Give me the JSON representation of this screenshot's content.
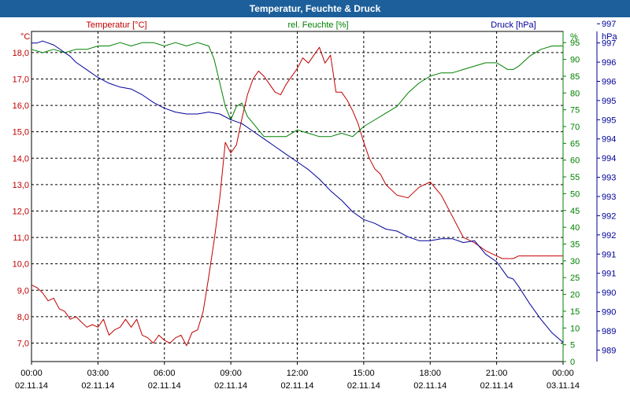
{
  "chart_data": {
    "type": "line",
    "title": "Temperatur, Feuchte & Druck",
    "x_ticks": [
      {
        "time": "00:00",
        "date": "02.11.14"
      },
      {
        "time": "03:00",
        "date": "02.11.14"
      },
      {
        "time": "06:00",
        "date": "02.11.14"
      },
      {
        "time": "09:00",
        "date": "02.11.14"
      },
      {
        "time": "12:00",
        "date": "02.11.14"
      },
      {
        "time": "15:00",
        "date": "02.11.14"
      },
      {
        "time": "18:00",
        "date": "02.11.14"
      },
      {
        "time": "21:00",
        "date": "02.11.14"
      },
      {
        "time": "00:00",
        "date": "03.11.14"
      }
    ],
    "x_range_hours": [
      0,
      24
    ],
    "axes": {
      "temperature": {
        "label": "Temperatur [°C]",
        "unit": "°C",
        "color": "#c00000",
        "ylim": [
          6.3,
          18.8
        ],
        "ticks": [
          "7,0",
          "8,0",
          "9,0",
          "10,0",
          "11,0",
          "12,0",
          "13,0",
          "14,0",
          "15,0",
          "16,0",
          "17,0",
          "18,0"
        ]
      },
      "humidity": {
        "label": "rel. Feuchte [%]",
        "unit": "%",
        "color": "#008000",
        "ylim": [
          0,
          98.33
        ],
        "ticks": [
          "0",
          "5",
          "10",
          "15",
          "20",
          "25",
          "30",
          "35",
          "40",
          "45",
          "50",
          "55",
          "60",
          "65",
          "70",
          "75",
          "80",
          "85",
          "90",
          "95"
        ]
      },
      "pressure": {
        "label": "Druck [hPa]",
        "unit": "hPa",
        "color": "#000099",
        "ylim": [
          988.7,
          997.3
        ],
        "ticks": [
          "989",
          "989",
          "990",
          "990",
          "991",
          "991",
          "992",
          "992",
          "993",
          "993",
          "994",
          "994",
          "995",
          "995",
          "996",
          "996",
          "997",
          "997"
        ]
      }
    },
    "series": [
      {
        "name": "Temperatur",
        "axis": "temperature",
        "color": "#c00000",
        "x": [
          0,
          0.25,
          0.5,
          0.75,
          1,
          1.25,
          1.5,
          1.75,
          2,
          2.25,
          2.5,
          2.75,
          3,
          3.25,
          3.5,
          3.75,
          4,
          4.25,
          4.5,
          4.75,
          5,
          5.25,
          5.5,
          5.75,
          6,
          6.25,
          6.5,
          6.75,
          7,
          7.25,
          7.5,
          7.75,
          8,
          8.25,
          8.5,
          8.75,
          9,
          9.25,
          9.5,
          9.75,
          10,
          10.25,
          10.5,
          10.75,
          11,
          11.25,
          11.5,
          11.75,
          12,
          12.25,
          12.5,
          12.75,
          13,
          13.25,
          13.5,
          13.75,
          14,
          14.25,
          14.5,
          14.75,
          15,
          15.25,
          15.5,
          15.75,
          16,
          16.5,
          17,
          17.5,
          18,
          18.5,
          19,
          19.5,
          20,
          20.5,
          21,
          21.25,
          21.5,
          21.75,
          22,
          22.5,
          23,
          23.5,
          24
        ],
        "values": [
          9.2,
          9.1,
          8.9,
          8.6,
          8.7,
          8.3,
          8.2,
          7.9,
          8.0,
          7.8,
          7.6,
          7.7,
          7.6,
          7.9,
          7.3,
          7.5,
          7.6,
          7.9,
          7.6,
          7.9,
          7.3,
          7.2,
          7.0,
          7.3,
          7.1,
          7.0,
          7.2,
          7.3,
          6.9,
          7.4,
          7.5,
          8.2,
          9.5,
          10.9,
          12.5,
          14.6,
          14.2,
          14.5,
          15.5,
          16.4,
          17.0,
          17.3,
          17.1,
          16.8,
          16.5,
          16.4,
          16.8,
          17.1,
          17.4,
          17.8,
          17.6,
          17.9,
          18.2,
          17.6,
          17.9,
          16.5,
          16.5,
          16.2,
          15.8,
          15.3,
          14.6,
          14.0,
          13.6,
          13.4,
          13.0,
          12.6,
          12.5,
          12.9,
          13.1,
          12.6,
          11.8,
          11.0,
          10.8,
          10.5,
          10.3,
          10.2,
          10.2,
          10.2,
          10.3,
          10.3,
          10.3,
          10.3,
          10.3
        ]
      },
      {
        "name": "rel. Feuchte",
        "axis": "humidity",
        "color": "#008000",
        "x": [
          0,
          0.5,
          1,
          1.5,
          2,
          2.5,
          3,
          3.5,
          4,
          4.5,
          5,
          5.5,
          6,
          6.5,
          7,
          7.5,
          8,
          8.25,
          8.5,
          8.75,
          9,
          9.25,
          9.5,
          9.75,
          10,
          10.25,
          10.5,
          10.75,
          11,
          11.5,
          12,
          12.5,
          13,
          13.5,
          14,
          14.5,
          15,
          15.5,
          16,
          16.5,
          17,
          17.5,
          18,
          18.5,
          19,
          19.5,
          20,
          20.5,
          21,
          21.25,
          21.5,
          21.75,
          22,
          22.5,
          23,
          23.5,
          24
        ],
        "values": [
          93,
          92,
          93,
          92,
          93,
          93,
          94,
          94,
          95,
          94,
          95,
          95,
          94,
          95,
          94,
          95,
          94,
          90,
          83,
          76,
          72,
          76,
          77,
          73,
          71,
          69,
          67,
          67,
          67,
          67,
          69,
          68,
          67,
          67,
          68,
          67,
          70,
          72,
          74,
          76,
          80,
          83,
          85,
          86,
          86,
          87,
          88,
          89,
          89,
          88,
          87,
          87,
          88,
          91,
          93,
          94,
          94
        ]
      },
      {
        "name": "Druck",
        "axis": "pressure",
        "color": "#000099",
        "x": [
          0,
          0.25,
          0.5,
          0.75,
          1,
          1.25,
          1.5,
          1.75,
          2,
          2.5,
          3,
          3.5,
          4,
          4.5,
          5,
          5.5,
          6,
          6.5,
          7,
          7.5,
          8,
          8.5,
          9,
          9.5,
          10,
          10.5,
          11,
          11.5,
          12,
          12.5,
          13,
          13.5,
          14,
          14.5,
          15,
          15.5,
          16,
          16.5,
          17,
          17.5,
          18,
          18.5,
          19,
          19.5,
          20,
          20.5,
          21,
          21.25,
          21.5,
          21.75,
          22,
          22.5,
          23,
          23.5,
          24
        ],
        "values": [
          997.0,
          997.0,
          997.05,
          997.0,
          996.95,
          996.85,
          996.75,
          996.65,
          996.5,
          996.3,
          996.1,
          995.95,
          995.85,
          995.8,
          995.65,
          995.45,
          995.3,
          995.2,
          995.15,
          995.15,
          995.2,
          995.15,
          995.0,
          994.9,
          994.7,
          994.5,
          994.3,
          994.1,
          993.9,
          993.7,
          993.45,
          993.15,
          992.9,
          992.6,
          992.4,
          992.3,
          992.15,
          992.1,
          991.95,
          991.85,
          991.85,
          991.9,
          991.9,
          991.8,
          991.85,
          991.5,
          991.3,
          991.1,
          990.9,
          990.85,
          990.65,
          990.2,
          989.8,
          989.45,
          989.2
        ]
      }
    ]
  }
}
